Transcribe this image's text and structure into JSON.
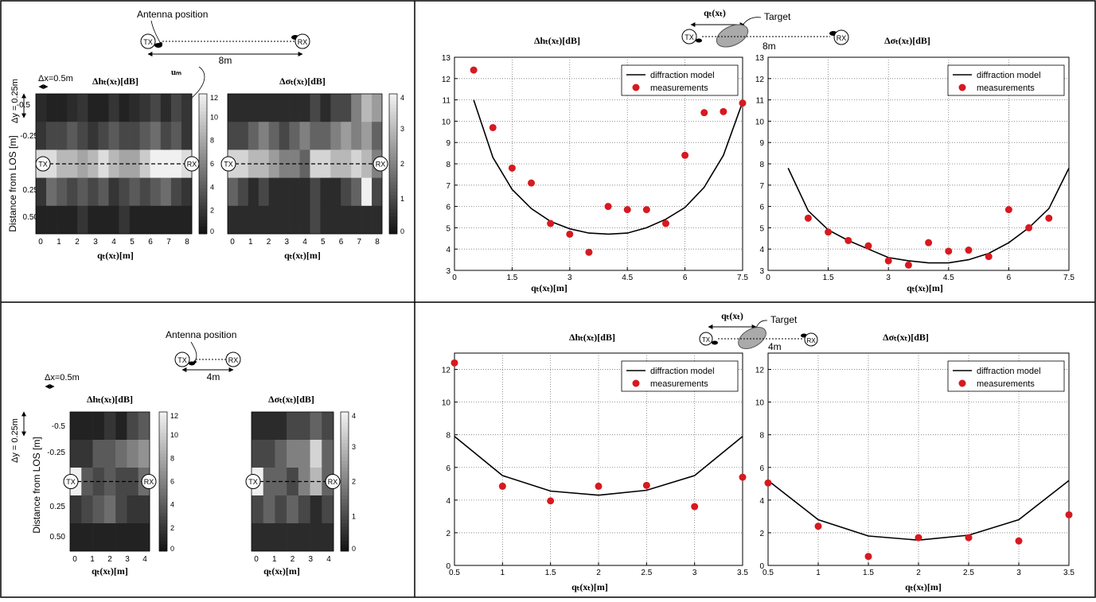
{
  "colors": {
    "frame": "#000000",
    "marker": "#d71920",
    "line": "#000000",
    "grid": "#777777"
  },
  "top_left": {
    "antenna_position": "Antenna position",
    "tx": "TX",
    "rx": "RX",
    "distance": "8m",
    "dx": "Δx=0.5m",
    "dy": "Δy = 0.25m",
    "um_label": "uₘ",
    "ylabel": "Distance from LOS [m]",
    "y_ticks": [
      "-0.5",
      "-0.25",
      "0.25",
      "0.50"
    ],
    "x_ticks": [
      "0",
      "1",
      "2",
      "3",
      "4",
      "5",
      "6",
      "7",
      "8"
    ],
    "xlabel": "qₜ(xₜ)[m]",
    "h_title": "Δhₜ(xₜ)[dB]",
    "s_title": "Δσₜ(xₜ)[dB]",
    "h_colorbar_ticks": [
      "0",
      "2",
      "4",
      "6",
      "8",
      "10",
      "12"
    ],
    "s_colorbar_ticks": [
      "0",
      "1",
      "2",
      "3",
      "4"
    ]
  },
  "bottom_left": {
    "antenna_position": "Antenna position",
    "tx": "TX",
    "rx": "RX",
    "distance": "4m",
    "dx": "Δx=0.5m",
    "dy": "Δy = 0.25m",
    "ylabel": "Distance from LOS [m]",
    "y_ticks": [
      "-0.5",
      "-0.25",
      "0.25",
      "0.50"
    ],
    "x_ticks": [
      "0",
      "1",
      "2",
      "3",
      "4"
    ],
    "xlabel": "qₜ(xₜ)[m]",
    "h_title": "Δhₜ(xₜ)[dB]",
    "s_title": "Δσₜ(xₜ)[dB]",
    "h_colorbar_ticks": [
      "0",
      "2",
      "4",
      "6",
      "8",
      "10",
      "12"
    ],
    "s_colorbar_ticks": [
      "0",
      "1",
      "2",
      "3",
      "4"
    ]
  },
  "top_right": {
    "target": "Target",
    "q_label": "qₜ(xₜ)",
    "distance": "8m",
    "tx": "TX",
    "rx": "RX"
  },
  "bottom_right": {
    "target": "Target",
    "q_label": "qₜ(xₜ)",
    "distance": "4m",
    "tx": "TX",
    "rx": "RX"
  },
  "chart_data": [
    {
      "type": "line",
      "title": "Δhₜ(xₜ)[dB]",
      "xlabel": "qₜ(xₜ)[m]",
      "xlim": [
        0,
        7.5
      ],
      "ylim": [
        3,
        13
      ],
      "xticks": [
        0,
        1.5,
        3,
        4.5,
        6,
        7.5
      ],
      "yticks": [
        3,
        4,
        5,
        6,
        7,
        8,
        9,
        10,
        11,
        12,
        13
      ],
      "grid": true,
      "legend": "top-right",
      "series": [
        {
          "name": "diffraction model",
          "kind": "line",
          "x": [
            0.5,
            1,
            1.5,
            2,
            2.5,
            3,
            3.5,
            4,
            4.5,
            5,
            5.5,
            6,
            6.5,
            7,
            7.5
          ],
          "y": [
            11.0,
            8.3,
            6.8,
            5.9,
            5.3,
            4.95,
            4.75,
            4.7,
            4.75,
            5.0,
            5.4,
            5.95,
            6.9,
            8.4,
            10.9
          ]
        },
        {
          "name": "measurements",
          "kind": "scatter",
          "x": [
            0.5,
            1,
            1.5,
            2,
            2.5,
            3,
            3.5,
            4,
            4.5,
            5,
            5.5,
            6,
            6.5,
            7,
            7.5
          ],
          "y": [
            12.4,
            9.7,
            7.8,
            7.1,
            5.2,
            4.7,
            3.85,
            6.0,
            5.85,
            5.85,
            5.2,
            8.4,
            10.4,
            10.45,
            10.85
          ]
        }
      ]
    },
    {
      "type": "line",
      "title": "Δσₜ(xₜ)[dB]",
      "xlabel": "qₜ(xₜ)[m]",
      "xlim": [
        0,
        7.5
      ],
      "ylim": [
        3,
        13
      ],
      "xticks": [
        0,
        1.5,
        3,
        4.5,
        6,
        7.5
      ],
      "yticks": [
        3,
        4,
        5,
        6,
        7,
        8,
        9,
        10,
        11,
        12,
        13
      ],
      "grid": true,
      "legend": "top-right",
      "series": [
        {
          "name": "diffraction model",
          "kind": "line",
          "x": [
            0.5,
            1,
            1.5,
            2,
            2.5,
            3,
            3.5,
            4,
            4.5,
            5,
            5.5,
            6,
            6.5,
            7,
            7.5
          ],
          "y": [
            7.8,
            5.8,
            4.9,
            4.4,
            4.0,
            3.6,
            3.45,
            3.35,
            3.35,
            3.5,
            3.8,
            4.3,
            5.0,
            5.9,
            7.8
          ]
        },
        {
          "name": "measurements",
          "kind": "scatter",
          "x": [
            1,
            1.5,
            2,
            2.5,
            3,
            3.5,
            4,
            4.5,
            5,
            5.5,
            6,
            6.5,
            7
          ],
          "y": [
            5.45,
            4.8,
            4.4,
            4.15,
            3.45,
            3.25,
            4.3,
            3.9,
            3.95,
            3.65,
            5.85,
            5.0,
            5.45
          ]
        }
      ]
    },
    {
      "type": "line",
      "title": "Δhₜ(xₜ)[dB]",
      "xlabel": "qₜ(xₜ)[m]",
      "xlim": [
        0.5,
        3.5
      ],
      "ylim": [
        0,
        13
      ],
      "xticks": [
        0.5,
        1,
        1.5,
        2,
        2.5,
        3,
        3.5
      ],
      "yticks": [
        0,
        2,
        4,
        6,
        8,
        10,
        12
      ],
      "grid": true,
      "legend": "top-right",
      "series": [
        {
          "name": "diffraction model",
          "kind": "line",
          "x": [
            0.5,
            1,
            1.5,
            2,
            2.5,
            3,
            3.5
          ],
          "y": [
            7.9,
            5.5,
            4.55,
            4.3,
            4.6,
            5.5,
            7.9
          ]
        },
        {
          "name": "measurements",
          "kind": "scatter",
          "x": [
            0.5,
            1,
            1.5,
            2,
            2.5,
            3,
            3.5
          ],
          "y": [
            12.4,
            4.85,
            3.95,
            4.85,
            4.9,
            3.6,
            5.4
          ]
        }
      ]
    },
    {
      "type": "line",
      "title": "Δσₜ(xₜ)[dB]",
      "xlabel": "qₜ(xₜ)[m]",
      "xlim": [
        0.5,
        3.5
      ],
      "ylim": [
        0,
        13
      ],
      "xticks": [
        0.5,
        1,
        1.5,
        2,
        2.5,
        3,
        3.5
      ],
      "yticks": [
        0,
        2,
        4,
        6,
        8,
        10,
        12
      ],
      "grid": true,
      "legend": "top-right",
      "series": [
        {
          "name": "diffraction model",
          "kind": "line",
          "x": [
            0.5,
            1,
            1.5,
            2,
            2.5,
            3,
            3.5
          ],
          "y": [
            5.2,
            2.8,
            1.8,
            1.55,
            1.85,
            2.8,
            5.2
          ]
        },
        {
          "name": "measurements",
          "kind": "scatter",
          "x": [
            0.5,
            1,
            1.5,
            2,
            2.5,
            3,
            3.5
          ],
          "y": [
            5.05,
            2.4,
            0.55,
            1.7,
            1.7,
            1.5,
            3.1
          ]
        }
      ]
    },
    {
      "type": "heatmap",
      "title": "Δhₜ(xₜ)[dB]",
      "xlabel": "qₜ(xₜ)[m]",
      "ylabel": "Distance from LOS [m]",
      "zlim": [
        0,
        12
      ],
      "rows": [
        "-0.5",
        "-0.25",
        "0",
        "0.25",
        "0.50"
      ],
      "values": [
        [
          1.5,
          1,
          1,
          1.5,
          2,
          1,
          1,
          2,
          1,
          1.5,
          2,
          3,
          1.5,
          3,
          2
        ],
        [
          2,
          3,
          3,
          4,
          3,
          2,
          3,
          4,
          3,
          3,
          4,
          5,
          3,
          4,
          2
        ],
        [
          11,
          11,
          9,
          9,
          8,
          9,
          11,
          9,
          8,
          8,
          10,
          12,
          12,
          13,
          11
        ],
        [
          2,
          5,
          4,
          3,
          4,
          3,
          4,
          2,
          3,
          4,
          3,
          4,
          5,
          3,
          2
        ],
        [
          1,
          1,
          1,
          1,
          2,
          1,
          1,
          1,
          2,
          1,
          1,
          1,
          1,
          1,
          1
        ]
      ]
    },
    {
      "type": "heatmap",
      "title": "Δσₜ(xₜ)[dB]",
      "xlabel": "qₜ(xₜ)[m]",
      "zlim": [
        0,
        4
      ],
      "rows": [
        "-0.5",
        "-0.25",
        "0",
        "0.25",
        "0.50"
      ],
      "values": [
        [
          0.5,
          0.5,
          0.5,
          0.5,
          0.5,
          0.5,
          0.5,
          0.5,
          1,
          0.5,
          1,
          1,
          2,
          3,
          2.5
        ],
        [
          1,
          1,
          1.5,
          2,
          1.5,
          1,
          1.5,
          2,
          1.5,
          1.5,
          2,
          2.5,
          2,
          2.5,
          1.5
        ],
        [
          3.5,
          3.5,
          3,
          3,
          2.5,
          2,
          2,
          1.5,
          3.5,
          3.5,
          3,
          3,
          3.5,
          3,
          2
        ],
        [
          1.5,
          1,
          0.5,
          1,
          0.5,
          0.5,
          0.5,
          0.5,
          1,
          0.5,
          0.5,
          1,
          1.5,
          4,
          1
        ],
        [
          0.5,
          0.5,
          0.5,
          0.5,
          0.5,
          0.5,
          0.5,
          0.5,
          1,
          0.5,
          0.5,
          0.5,
          0.5,
          0.5,
          0.5
        ]
      ]
    },
    {
      "type": "heatmap",
      "title": "Δhₜ(xₜ)[dB]",
      "xlabel": "qₜ(xₜ)[m]",
      "ylabel": "Distance from LOS [m]",
      "zlim": [
        0,
        12
      ],
      "rows": [
        "-0.5",
        "-0.25",
        "0",
        "0.25",
        "0.50"
      ],
      "values": [
        [
          1,
          1,
          1,
          2,
          1,
          3,
          4
        ],
        [
          2,
          2,
          4,
          4,
          5,
          6,
          7
        ],
        [
          12,
          4,
          3,
          4,
          3,
          3,
          5
        ],
        [
          2,
          3,
          4,
          5,
          3,
          2,
          2
        ],
        [
          1,
          1,
          1,
          1,
          1,
          1,
          1
        ]
      ]
    },
    {
      "type": "heatmap",
      "title": "Δσₜ(xₜ)[dB]",
      "xlabel": "qₜ(xₜ)[m]",
      "zlim": [
        0,
        4
      ],
      "rows": [
        "-0.5",
        "-0.25",
        "0",
        "0.25",
        "0.50"
      ],
      "values": [
        [
          0.5,
          0.5,
          0.5,
          1,
          1,
          1.5,
          1
        ],
        [
          1,
          1,
          1.5,
          2,
          2,
          3.5,
          1.5
        ],
        [
          4,
          1.5,
          1.5,
          1,
          2,
          3,
          1.5
        ],
        [
          1,
          1.5,
          1,
          1.5,
          1,
          0.5,
          1
        ],
        [
          0.5,
          0.5,
          0.5,
          0.5,
          0.5,
          0.5,
          0.5
        ]
      ]
    }
  ]
}
